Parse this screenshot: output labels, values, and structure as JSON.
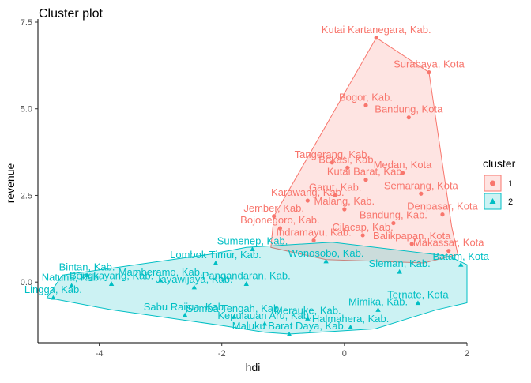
{
  "chart_data": {
    "type": "scatter",
    "title": "Cluster plot",
    "xlabel": "hdi",
    "ylabel": "revenue",
    "xlim": [
      -5,
      2
    ],
    "ylim": [
      -1.75,
      7.5
    ],
    "x_ticks": [
      -4,
      -2,
      0,
      2
    ],
    "y_ticks": [
      0.0,
      2.5,
      5.0,
      7.5
    ],
    "x_tick_labels": [
      "-4",
      "-2",
      "0",
      "2"
    ],
    "y_tick_labels": [
      "0.0",
      "2.5",
      "5.0",
      "7.5"
    ],
    "grid": false,
    "legend": {
      "title": "cluster",
      "placement": "right",
      "entries": [
        {
          "label": "1",
          "color": "#F8766D",
          "shape": "circle"
        },
        {
          "label": "2",
          "color": "#00BFC4",
          "shape": "triangle"
        }
      ]
    },
    "series": [
      {
        "name": "1",
        "color": "#F8766D",
        "points": [
          {
            "x": 0.52,
            "y": 7.05,
            "label": "Kutai Kartanegara, Kab."
          },
          {
            "x": 1.38,
            "y": 6.05,
            "label": "Surabaya, Kota"
          },
          {
            "x": 0.35,
            "y": 5.1,
            "label": "Bogor, Kab."
          },
          {
            "x": 1.05,
            "y": 4.75,
            "label": "Bandung, Kota"
          },
          {
            "x": -0.2,
            "y": 3.45,
            "label": "Tangerang, Kab."
          },
          {
            "x": 0.95,
            "y": 3.15,
            "label": "Medan, Kota"
          },
          {
            "x": 0.05,
            "y": 3.3,
            "label": "Bekasi, Kab."
          },
          {
            "x": 0.35,
            "y": 2.95,
            "label": "Kutai Barat, Kab."
          },
          {
            "x": 1.25,
            "y": 2.55,
            "label": "Semarang, Kota"
          },
          {
            "x": -0.15,
            "y": 2.5,
            "label": "Garut, Kab."
          },
          {
            "x": -0.6,
            "y": 2.35,
            "label": "Karawang, Kab."
          },
          {
            "x": 0.0,
            "y": 2.1,
            "label": "Malang, Kab."
          },
          {
            "x": -1.15,
            "y": 1.9,
            "label": "Jember, Kab."
          },
          {
            "x": -1.05,
            "y": 1.55,
            "label": "Bojonegoro, Kab."
          },
          {
            "x": 1.6,
            "y": 1.95,
            "label": "Denpasar, Kota"
          },
          {
            "x": 0.8,
            "y": 1.7,
            "label": "Bandung, Kab."
          },
          {
            "x": 0.3,
            "y": 1.35,
            "label": "Cilacap, Kab."
          },
          {
            "x": -0.5,
            "y": 1.2,
            "label": "Indramayu, Kab."
          },
          {
            "x": 1.1,
            "y": 1.1,
            "label": "Balikpapan, Kota"
          },
          {
            "x": 1.7,
            "y": 0.9,
            "label": "Makassar, Kota"
          }
        ]
      },
      {
        "name": "2",
        "color": "#00BFC4",
        "points": [
          {
            "x": -4.75,
            "y": -0.45,
            "label": "Lingga, Kab."
          },
          {
            "x": -4.2,
            "y": 0.2,
            "label": "Bintan, Kab."
          },
          {
            "x": -4.45,
            "y": -0.1,
            "label": "Natuna, Kab."
          },
          {
            "x": -3.8,
            "y": -0.05,
            "label": "Bengkayang, Kab."
          },
          {
            "x": -3.0,
            "y": 0.05,
            "label": "Mamberamo, Kab."
          },
          {
            "x": -2.45,
            "y": -0.15,
            "label": "Jayawijaya, Kab."
          },
          {
            "x": -2.6,
            "y": -0.95,
            "label": "Sabu Raijua, Kab."
          },
          {
            "x": -1.8,
            "y": -1.0,
            "label": "Sumba Tengah, Kab."
          },
          {
            "x": -2.1,
            "y": 0.55,
            "label": "Lombok Timur, Kab."
          },
          {
            "x": -1.5,
            "y": 0.95,
            "label": "Sumenep, Kab."
          },
          {
            "x": -1.6,
            "y": -0.05,
            "label": "Pangandaran, Kab."
          },
          {
            "x": -1.3,
            "y": -1.2,
            "label": "Kepulauan Aru, Kab."
          },
          {
            "x": -0.9,
            "y": -1.5,
            "label": "Maluku Barat Daya, Kab."
          },
          {
            "x": -0.6,
            "y": -1.05,
            "label": "Merauke, Kab."
          },
          {
            "x": 0.1,
            "y": -1.3,
            "label": "Halmahera, Kab."
          },
          {
            "x": 0.55,
            "y": -0.8,
            "label": "Mimika, Kab."
          },
          {
            "x": 1.2,
            "y": -0.6,
            "label": "Ternate, Kota"
          },
          {
            "x": 1.9,
            "y": 0.5,
            "label": "Batam, Kota"
          },
          {
            "x": -0.3,
            "y": 0.6,
            "label": "Wonosobo, Kab."
          },
          {
            "x": 0.9,
            "y": 0.3,
            "label": "Sleman, Kab."
          }
        ]
      }
    ],
    "hulls": [
      {
        "cluster": "1",
        "points": [
          [
            0.52,
            7.05
          ],
          [
            1.38,
            6.05
          ],
          [
            1.75,
            1.6
          ],
          [
            1.85,
            0.8
          ],
          [
            1.3,
            0.55
          ],
          [
            -0.3,
            0.65
          ],
          [
            -1.2,
            1.0
          ],
          [
            -1.15,
            1.9
          ]
        ]
      },
      {
        "cluster": "2",
        "points": [
          [
            -4.85,
            -0.45
          ],
          [
            -3.8,
            -0.8
          ],
          [
            -2.0,
            -1.25
          ],
          [
            -1.3,
            -1.45
          ],
          [
            -0.9,
            -1.5
          ],
          [
            0.5,
            -1.35
          ],
          [
            1.5,
            -0.8
          ],
          [
            2.0,
            -0.6
          ],
          [
            2.0,
            0.5
          ],
          [
            1.7,
            0.75
          ],
          [
            -0.2,
            1.15
          ],
          [
            -1.6,
            1.0
          ],
          [
            -2.2,
            0.8
          ],
          [
            -4.6,
            0.2
          ]
        ]
      }
    ]
  }
}
